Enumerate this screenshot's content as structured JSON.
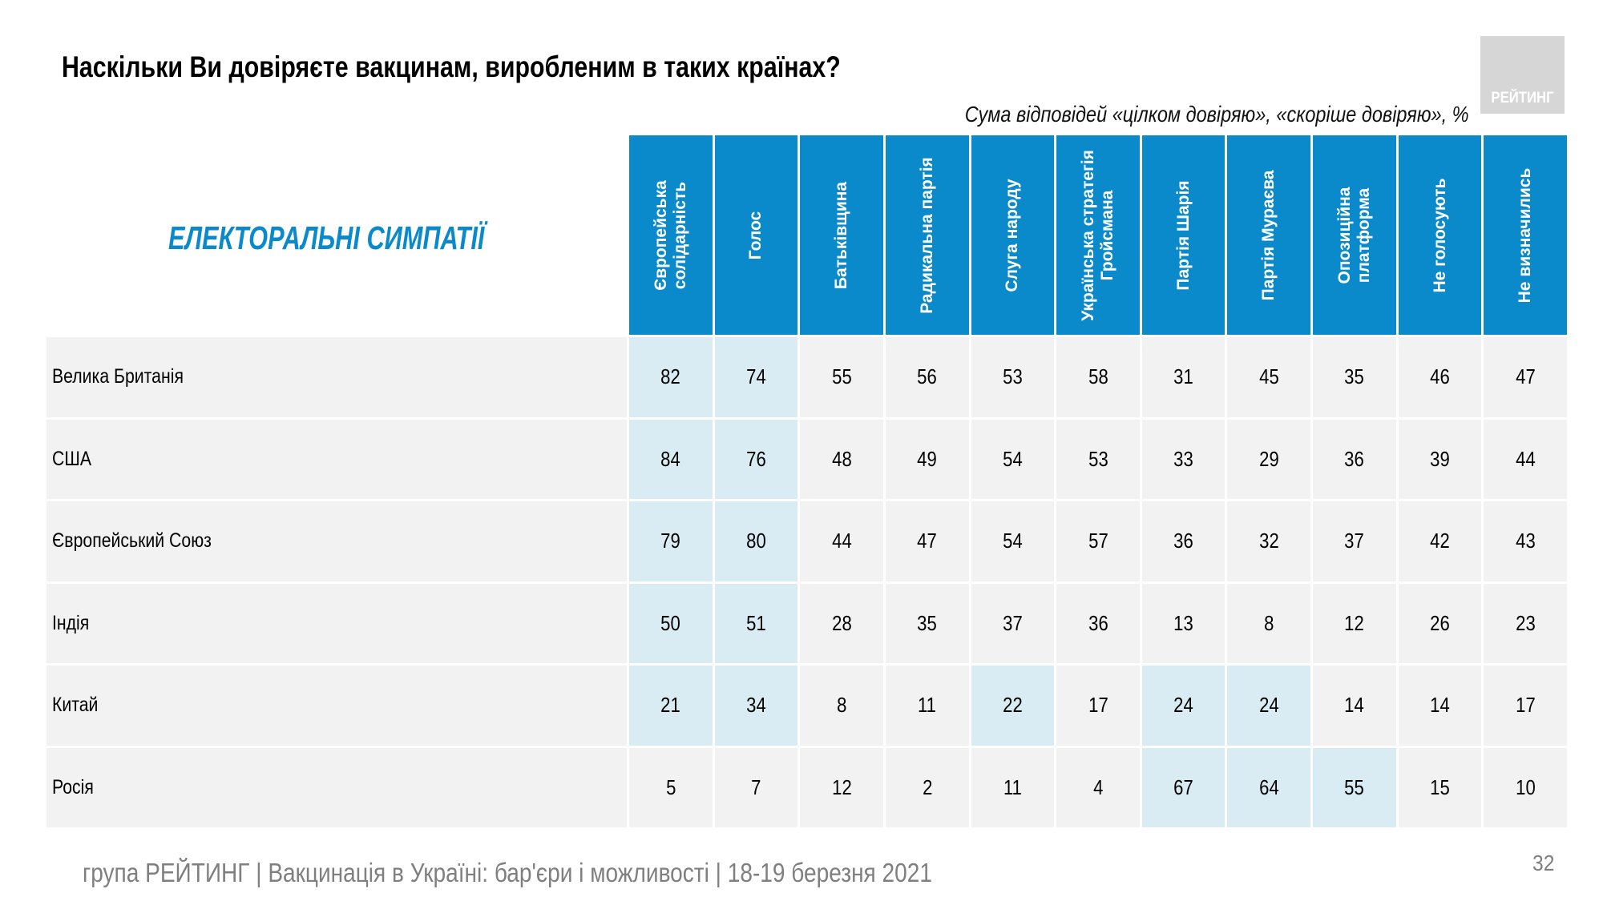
{
  "title": "Наскільки Ви довіряєте вакцинам, виробленим в таких країнах?",
  "subtitle": "Сума відповідей «цілком довіряю», «скоріше довіряю», %",
  "logo": {
    "text": "РЕЙТИНГ",
    "color": "#d6d6d6"
  },
  "section_label": "ЕЛЕКТОРАЛЬНІ СИМПАТІЇ",
  "colors": {
    "header_bg": "#0a8acb",
    "cell_bg": "#f2f2f2",
    "highlight_bg": "#daecf3",
    "accent_text": "#0a8acb",
    "footer_text": "#7f7f7f"
  },
  "chart_data": {
    "type": "table",
    "title": "Наскільки Ви довіряєте вакцинам, виробленим в таких країнах?",
    "subtitle": "Сума відповідей «цілком довіряю», «скоріше довіряю», %",
    "row_header_label": "ЕЛЕКТОРАЛЬНІ СИМПАТІЇ",
    "columns": [
      "Європейська\nсолідарність",
      "Голос",
      "Батьківщина",
      "Радикальна партія",
      "Слуга народу",
      "Українська стратегія\nГройсмана",
      "Партія Шарія",
      "Партія Мураєва",
      "Опозиційна\nплатформа",
      "Не голосують",
      "Не визначились"
    ],
    "rows": [
      {
        "label": "Велика Британія",
        "values": [
          82,
          74,
          55,
          56,
          53,
          58,
          31,
          45,
          35,
          46,
          47
        ],
        "highlight": [
          0,
          1
        ]
      },
      {
        "label": "США",
        "values": [
          84,
          76,
          48,
          49,
          54,
          53,
          33,
          29,
          36,
          39,
          44
        ],
        "highlight": [
          0,
          1
        ]
      },
      {
        "label": "Європейський Союз",
        "values": [
          79,
          80,
          44,
          47,
          54,
          57,
          36,
          32,
          37,
          42,
          43
        ],
        "highlight": [
          0,
          1
        ]
      },
      {
        "label": "Індія",
        "values": [
          50,
          51,
          28,
          35,
          37,
          36,
          13,
          8,
          12,
          26,
          23
        ],
        "highlight": [
          0,
          1
        ]
      },
      {
        "label": "Китай",
        "values": [
          21,
          34,
          8,
          11,
          22,
          17,
          24,
          24,
          14,
          14,
          17
        ],
        "highlight": [
          0,
          1,
          4,
          6,
          7
        ]
      },
      {
        "label": "Росія",
        "values": [
          5,
          7,
          12,
          2,
          11,
          4,
          67,
          64,
          55,
          15,
          10
        ],
        "highlight": [
          6,
          7,
          8
        ]
      }
    ],
    "unit": "%"
  },
  "footer": "група РЕЙТИНГ | Вакцинація в Україні: бар'єри і можливості | 18-19 березня 2021",
  "page_number": "32"
}
